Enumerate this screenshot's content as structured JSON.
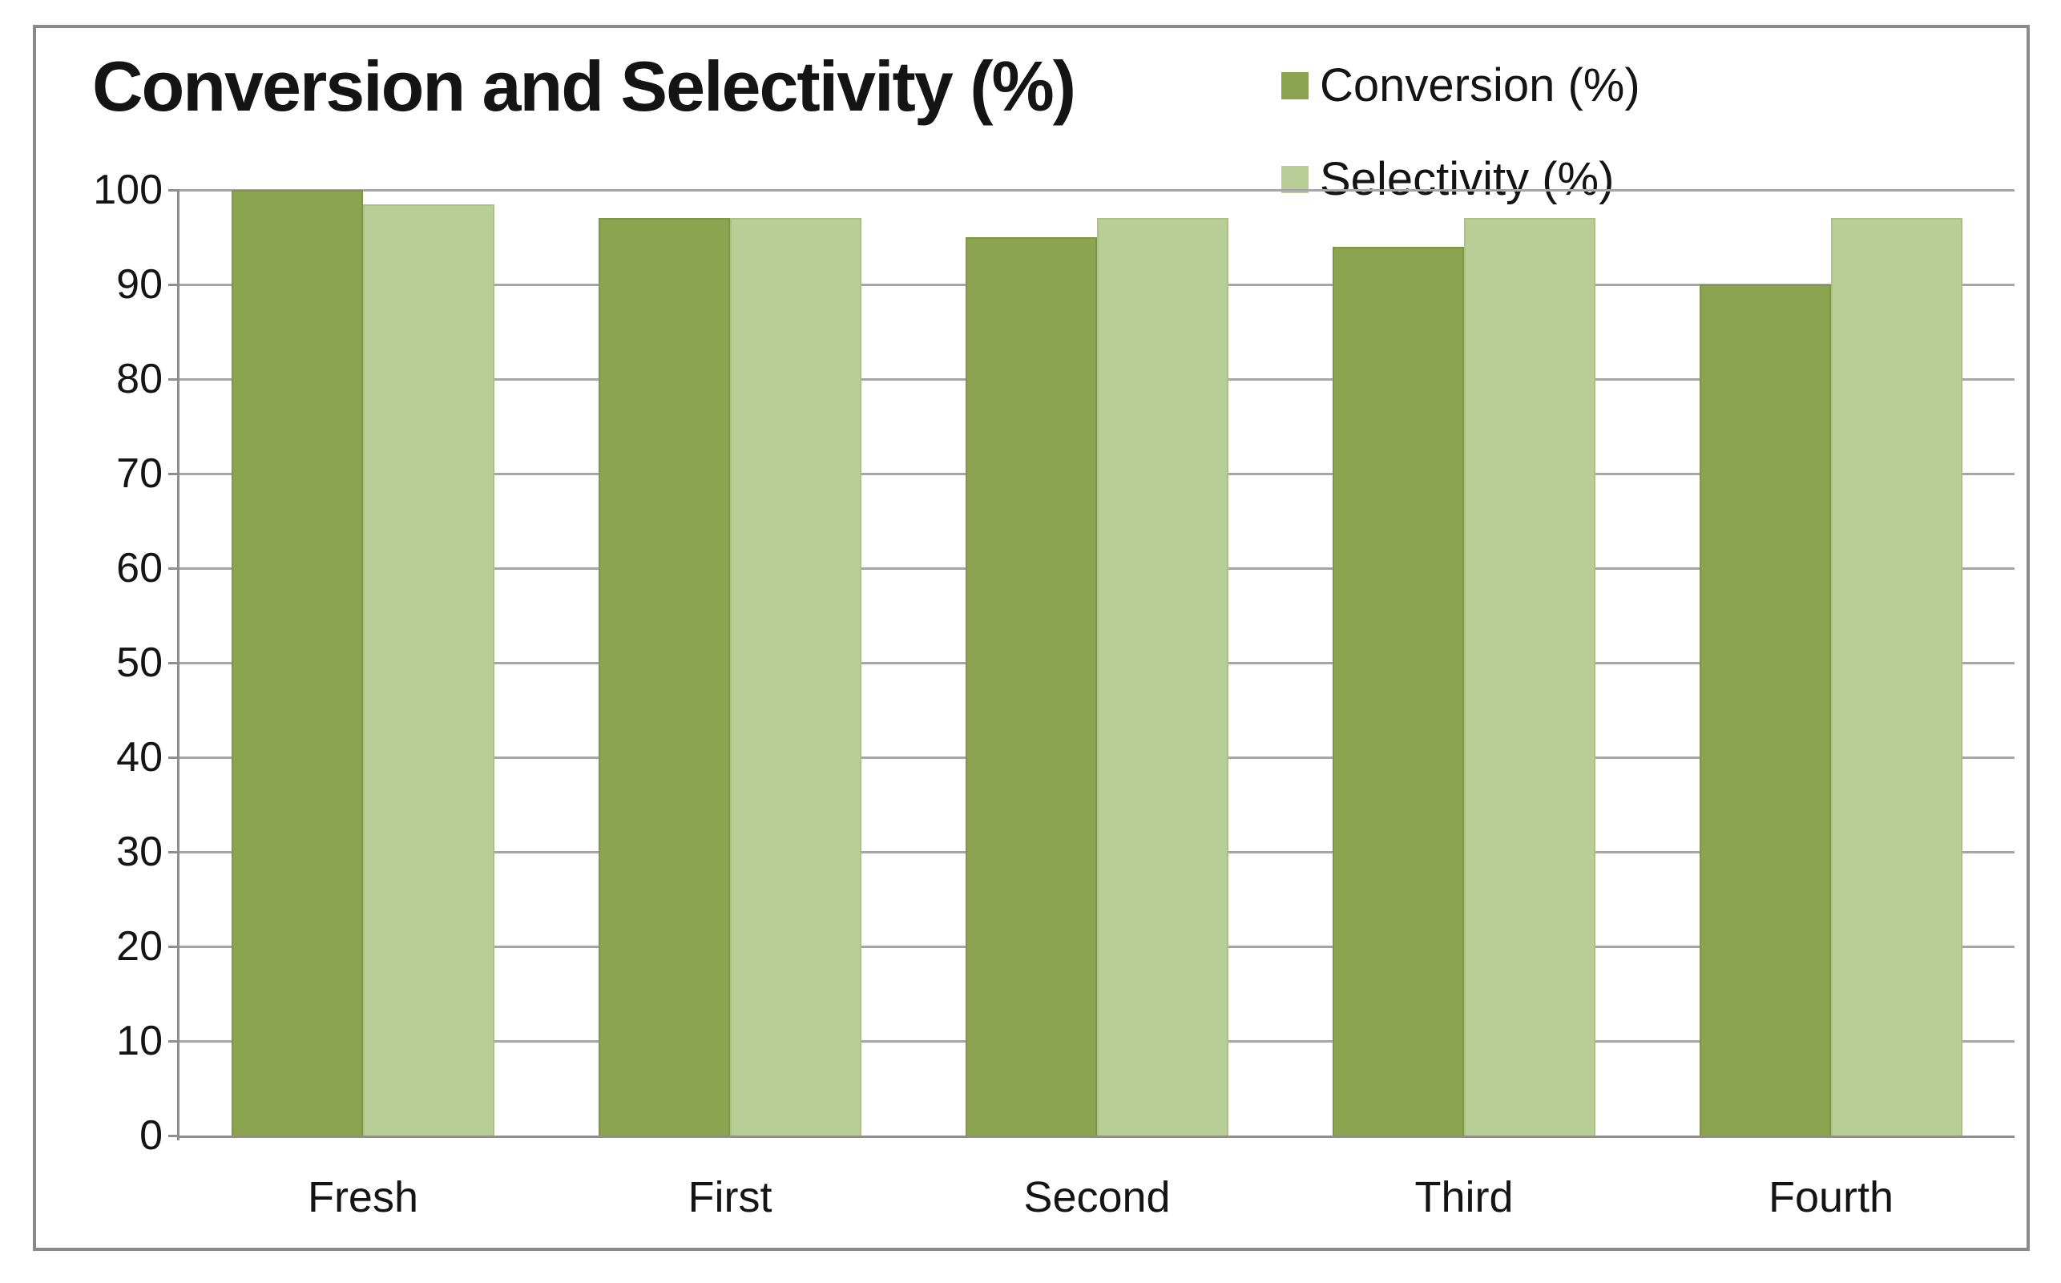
{
  "chart_data": {
    "type": "bar",
    "title": "Conversion and Selectivity (%)",
    "categories": [
      "Fresh",
      "First",
      "Second",
      "Third",
      "Fourth"
    ],
    "series": [
      {
        "name": "Conversion (%)",
        "color": "#8CA450",
        "edge_color": "#7E9647",
        "values": [
          100,
          97,
          95,
          94,
          90
        ]
      },
      {
        "name": "Selectivity (%)",
        "color": "#B9CE96",
        "edge_color": "#ABC285",
        "values": [
          98.5,
          97,
          97,
          97,
          97
        ]
      }
    ],
    "xlabel": "",
    "ylabel": "",
    "ylim": [
      0,
      100
    ],
    "yticks": [
      0,
      10,
      20,
      30,
      40,
      50,
      60,
      70,
      80,
      90,
      100
    ],
    "grid": true,
    "legend_position": "top-right"
  },
  "style_colors": {
    "gridline": "#a6a6a6",
    "axis": "#8f8f8f",
    "frame_border": "#8a8a8a",
    "text": "#141414",
    "background": "#ffffff"
  }
}
